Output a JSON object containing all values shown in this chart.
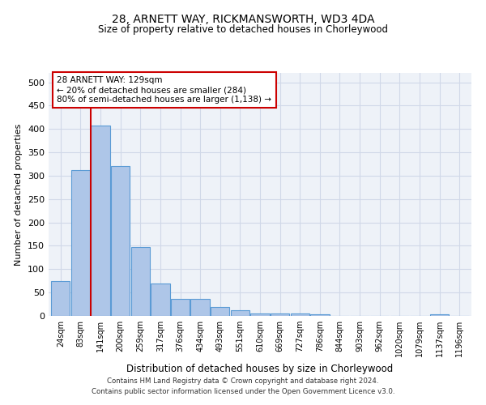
{
  "title": "28, ARNETT WAY, RICKMANSWORTH, WD3 4DA",
  "subtitle": "Size of property relative to detached houses in Chorleywood",
  "xlabel": "Distribution of detached houses by size in Chorleywood",
  "ylabel": "Number of detached properties",
  "bin_labels": [
    "24sqm",
    "83sqm",
    "141sqm",
    "200sqm",
    "259sqm",
    "317sqm",
    "376sqm",
    "434sqm",
    "493sqm",
    "551sqm",
    "610sqm",
    "669sqm",
    "727sqm",
    "786sqm",
    "844sqm",
    "903sqm",
    "962sqm",
    "1020sqm",
    "1079sqm",
    "1137sqm",
    "1196sqm"
  ],
  "bar_heights": [
    75,
    312,
    407,
    320,
    148,
    70,
    37,
    37,
    19,
    13,
    5,
    5,
    5,
    4,
    0,
    0,
    0,
    0,
    0,
    3,
    0
  ],
  "bar_color": "#aec6e8",
  "bar_edgecolor": "#5b9bd5",
  "property_line_bin": 2,
  "annotation_text": "28 ARNETT WAY: 129sqm\n← 20% of detached houses are smaller (284)\n80% of semi-detached houses are larger (1,138) →",
  "annotation_box_color": "#ffffff",
  "annotation_box_edgecolor": "#cc0000",
  "vertical_line_color": "#cc0000",
  "grid_color": "#d0d8e8",
  "background_color": "#eef2f8",
  "footer_line1": "Contains HM Land Registry data © Crown copyright and database right 2024.",
  "footer_line2": "Contains public sector information licensed under the Open Government Licence v3.0.",
  "ylim": [
    0,
    520
  ],
  "yticks": [
    0,
    50,
    100,
    150,
    200,
    250,
    300,
    350,
    400,
    450,
    500
  ]
}
